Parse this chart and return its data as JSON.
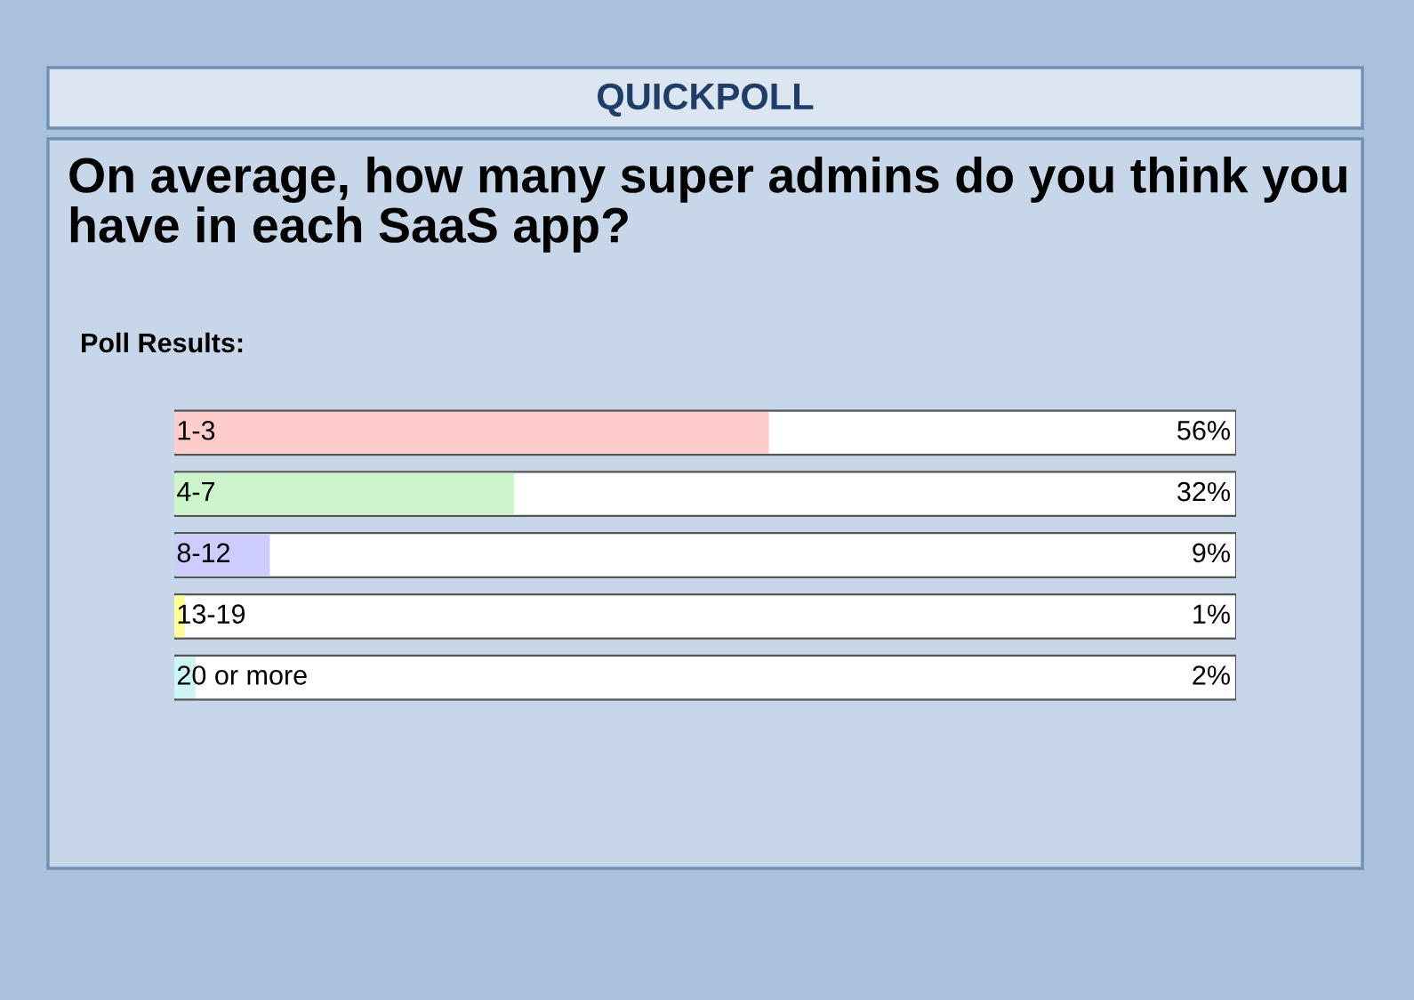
{
  "chart_data": {
    "type": "bar",
    "orientation": "horizontal",
    "title": "QUICKPOLL",
    "subtitle": "On average, how many super admins do you think you have in each SaaS app?",
    "annotations": [
      "Poll Results:"
    ],
    "categories": [
      "1-3",
      "4-7",
      "8-12",
      "13-19",
      "20 or more"
    ],
    "values": [
      56,
      32,
      9,
      1,
      2
    ],
    "colors": [
      "#ffcccc",
      "#ccf5cc",
      "#ccccff",
      "#ffff99",
      "#ccf5f5"
    ],
    "value_labels": [
      "56%",
      "32%",
      "9%",
      "1%",
      "2%"
    ],
    "xlim": [
      0,
      100
    ],
    "tick_labels": false
  }
}
